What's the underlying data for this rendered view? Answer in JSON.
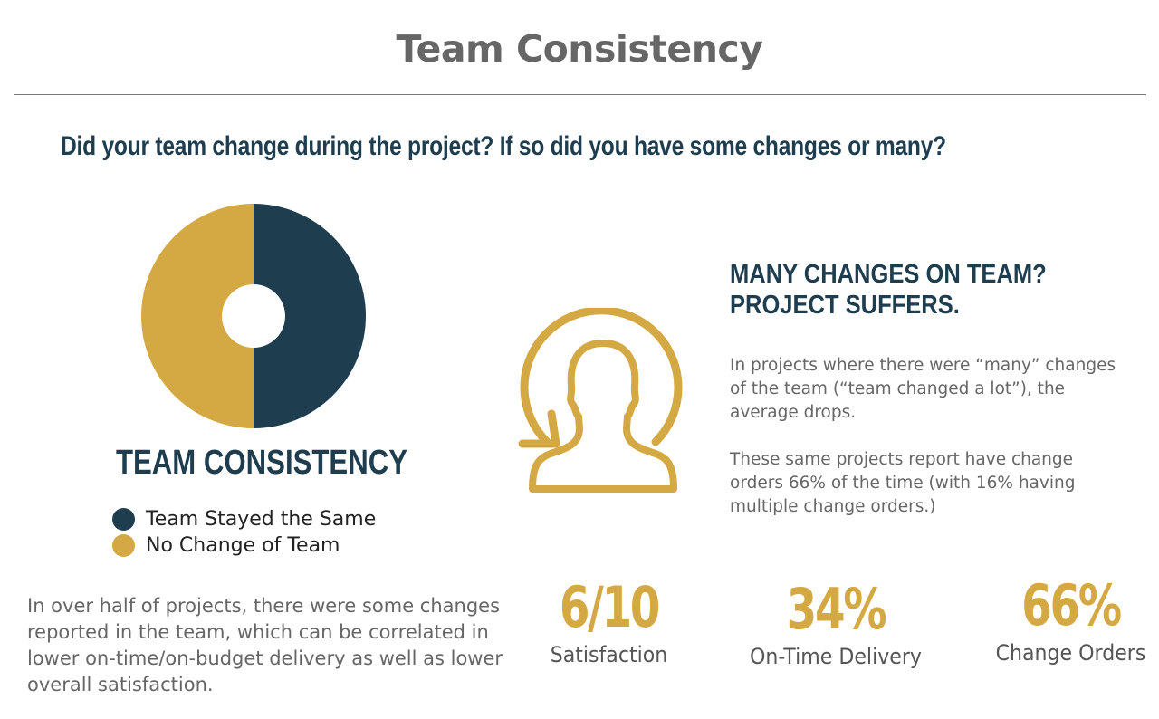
{
  "header": {
    "title": "Team Consistency"
  },
  "question": "Did your team change during the project? If so did you have some changes or many?",
  "colors": {
    "navy": "#1e3d4f",
    "gold": "#d4a843"
  },
  "chart_data": {
    "type": "pie",
    "title": "TEAM CONSISTENCY",
    "series": [
      {
        "name": "Team Stayed the Same",
        "value": 50,
        "color": "#1e3d4f"
      },
      {
        "name": "No Change of Team",
        "value": 50,
        "color": "#d4a843"
      }
    ],
    "legend_position": "bottom"
  },
  "left_text": "In over half of projects, there were some changes reported in the team, which can be correlated in lower on-time/on-budget delivery as well as lower overall satisfaction.",
  "icon": "person-refresh-icon",
  "right": {
    "heading_line1": "MANY CHANGES ON TEAM?",
    "heading_line2": "PROJECT SUFFERS.",
    "paragraph1": "In projects where there were “many” changes of the team (“team changed a lot”), the average drops.",
    "paragraph2": "These same projects report have change orders 66% of the time (with 16% having multiple change orders.)"
  },
  "stats": [
    {
      "value": "6/10",
      "label": "Satisfaction"
    },
    {
      "value": "34%",
      "label": "On-Time Delivery"
    },
    {
      "value": "66%",
      "label": "Change Orders"
    }
  ]
}
